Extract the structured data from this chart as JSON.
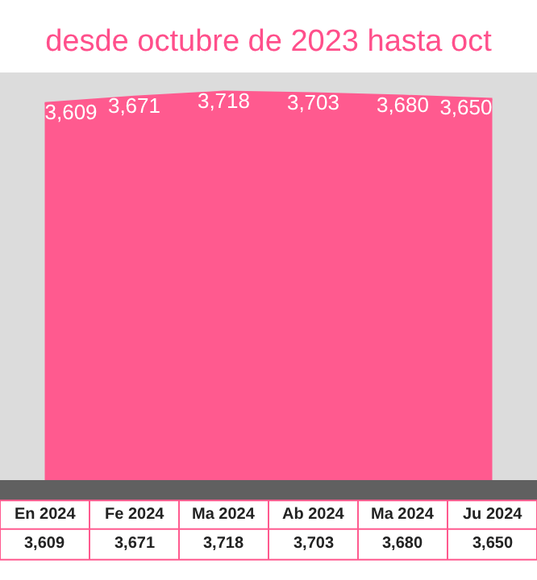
{
  "chart_data": {
    "type": "area",
    "title": "desde octubre de 2023 hasta oct",
    "categories": [
      "En 2024",
      "Fe 2024",
      "Ma 2024",
      "Ab 2024",
      "Ma 2024",
      "Ju 2024"
    ],
    "series": [
      {
        "color": "#ff5a8f",
        "values": [
          3609,
          3671,
          3718,
          3703,
          3680,
          3650
        ],
        "value_labels": [
          "3,609",
          "3,671",
          "3,718",
          "3,703",
          "3,680",
          "3,650"
        ]
      }
    ]
  }
}
